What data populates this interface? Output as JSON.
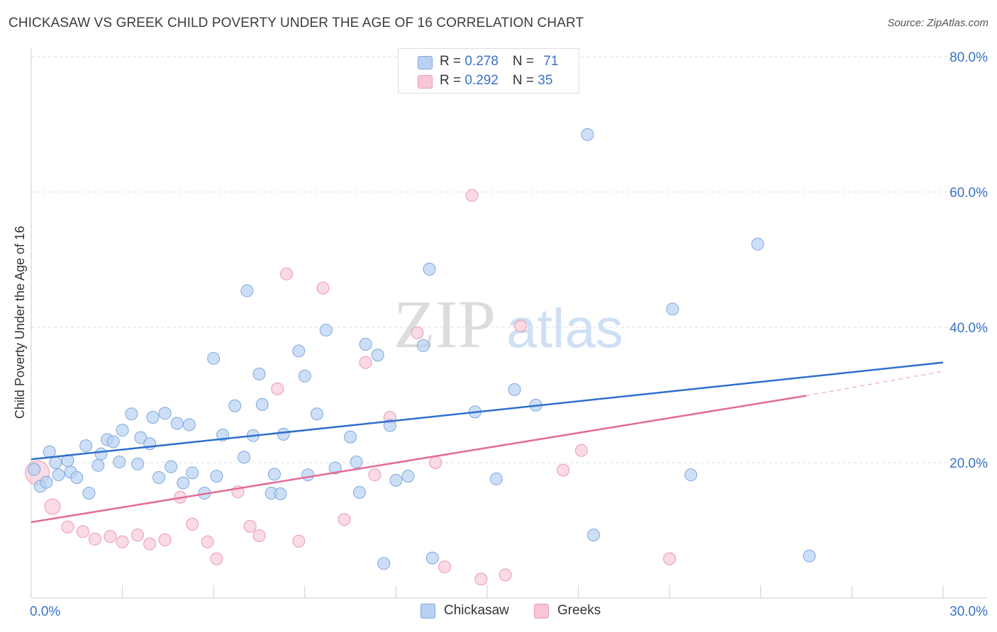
{
  "title": "CHICKASAW VS GREEK CHILD POVERTY UNDER THE AGE OF 16 CORRELATION CHART",
  "source": "Source: ZipAtlas.com",
  "watermark": {
    "zip": "ZIP",
    "atlas": "atlas"
  },
  "colors": {
    "blue_fill": "#b8d1f3",
    "blue_stroke": "#7da8dc",
    "blue_line": "#2e6fcf",
    "pink_fill": "#f8c6d5",
    "pink_stroke": "#e89ab3",
    "pink_line": "#e46b96",
    "grid": "#dcdcdc",
    "tick_label": "#3a72c8"
  },
  "legend": {
    "rows": [
      {
        "r_label": "R = ",
        "r_value": "0.278",
        "n_label": "N = ",
        "n_value": "71"
      },
      {
        "r_label": "R = ",
        "r_value": "0.292",
        "n_label": "N = ",
        "n_value": "35"
      }
    ]
  },
  "bottom_legend": {
    "chickasaw": "Chickasaw",
    "greeks": "Greeks"
  },
  "chart_data": {
    "type": "scatter",
    "title": "CHICKASAW VS GREEK CHILD POVERTY UNDER THE AGE OF 16 CORRELATION CHART",
    "xlabel": "",
    "ylabel": "Child Poverty Under the Age of 16",
    "xlim": [
      0,
      30
    ],
    "ylim": [
      0,
      80
    ],
    "x_tick_labels": [
      "0.0%",
      "30.0%"
    ],
    "y_ticks": [
      20,
      40,
      60,
      80
    ],
    "y_tick_labels": [
      "20.0%",
      "40.0%",
      "60.0%",
      "80.0%"
    ],
    "x_minor_ticks": [
      3,
      6,
      9,
      12,
      15,
      18,
      21,
      24,
      27
    ],
    "grid": true,
    "legend_position": "top-center",
    "series": [
      {
        "name": "Chickasaw",
        "color": "#b8d1f3",
        "trend": {
          "x": [
            0,
            30
          ],
          "y": [
            20.5,
            34.8
          ]
        },
        "points": [
          [
            0.1,
            19.0
          ],
          [
            0.3,
            16.5
          ],
          [
            0.5,
            17.1
          ],
          [
            0.6,
            21.6
          ],
          [
            0.8,
            20.0
          ],
          [
            0.9,
            18.2
          ],
          [
            1.2,
            20.3
          ],
          [
            1.3,
            18.6
          ],
          [
            1.5,
            17.8
          ],
          [
            1.8,
            22.5
          ],
          [
            1.9,
            15.5
          ],
          [
            2.2,
            19.6
          ],
          [
            2.3,
            21.3
          ],
          [
            2.5,
            23.4
          ],
          [
            2.7,
            23.1
          ],
          [
            2.9,
            20.1
          ],
          [
            3.0,
            24.8
          ],
          [
            3.3,
            27.2
          ],
          [
            3.5,
            19.8
          ],
          [
            3.6,
            23.7
          ],
          [
            3.9,
            22.8
          ],
          [
            4.0,
            26.7
          ],
          [
            4.2,
            17.8
          ],
          [
            4.4,
            27.3
          ],
          [
            4.6,
            19.4
          ],
          [
            4.8,
            25.8
          ],
          [
            5.0,
            17.0
          ],
          [
            5.2,
            25.6
          ],
          [
            5.3,
            18.5
          ],
          [
            5.7,
            15.5
          ],
          [
            6.0,
            35.4
          ],
          [
            6.1,
            18.0
          ],
          [
            6.3,
            24.1
          ],
          [
            6.7,
            28.4
          ],
          [
            7.0,
            20.8
          ],
          [
            7.1,
            45.4
          ],
          [
            7.3,
            24.0
          ],
          [
            7.5,
            33.1
          ],
          [
            7.6,
            28.6
          ],
          [
            7.9,
            15.5
          ],
          [
            8.0,
            18.3
          ],
          [
            8.2,
            15.4
          ],
          [
            8.3,
            24.2
          ],
          [
            8.8,
            36.5
          ],
          [
            9.0,
            32.8
          ],
          [
            9.1,
            18.2
          ],
          [
            9.4,
            27.2
          ],
          [
            9.7,
            39.6
          ],
          [
            10.0,
            19.2
          ],
          [
            10.5,
            23.8
          ],
          [
            10.7,
            20.1
          ],
          [
            10.8,
            15.6
          ],
          [
            11.0,
            37.5
          ],
          [
            11.4,
            35.9
          ],
          [
            11.6,
            5.1
          ],
          [
            11.8,
            25.5
          ],
          [
            12.0,
            17.4
          ],
          [
            12.4,
            18.0
          ],
          [
            12.9,
            37.3
          ],
          [
            13.1,
            48.6
          ],
          [
            13.2,
            5.9
          ],
          [
            14.6,
            27.5
          ],
          [
            15.3,
            17.6
          ],
          [
            15.9,
            30.8
          ],
          [
            16.6,
            28.5
          ],
          [
            18.3,
            68.5
          ],
          [
            18.5,
            9.3
          ],
          [
            21.1,
            42.7
          ],
          [
            21.7,
            18.2
          ],
          [
            23.9,
            52.3
          ],
          [
            25.6,
            6.2
          ]
        ]
      },
      {
        "name": "Greeks",
        "color": "#f8c6d5",
        "trend": {
          "x": [
            0,
            25.5
          ],
          "y": [
            11.2,
            29.9
          ]
        },
        "trend_dashed": {
          "x": [
            25.5,
            30
          ],
          "y": [
            29.9,
            33.5
          ]
        },
        "points": [
          [
            0.2,
            18.5
          ],
          [
            0.7,
            13.5
          ],
          [
            1.2,
            10.5
          ],
          [
            1.7,
            9.8
          ],
          [
            2.1,
            8.7
          ],
          [
            2.6,
            9.1
          ],
          [
            3.0,
            8.3
          ],
          [
            3.5,
            9.3
          ],
          [
            3.9,
            8.0
          ],
          [
            4.4,
            8.6
          ],
          [
            4.9,
            14.9
          ],
          [
            5.3,
            10.9
          ],
          [
            5.8,
            8.3
          ],
          [
            6.1,
            5.8
          ],
          [
            6.8,
            15.7
          ],
          [
            7.2,
            10.6
          ],
          [
            7.5,
            9.2
          ],
          [
            8.1,
            30.9
          ],
          [
            8.4,
            47.9
          ],
          [
            8.8,
            8.4
          ],
          [
            9.6,
            45.8
          ],
          [
            10.3,
            11.6
          ],
          [
            11.0,
            34.8
          ],
          [
            11.3,
            18.2
          ],
          [
            11.8,
            26.7
          ],
          [
            12.7,
            39.2
          ],
          [
            13.3,
            20.0
          ],
          [
            13.6,
            4.6
          ],
          [
            14.5,
            59.5
          ],
          [
            14.8,
            2.8
          ],
          [
            15.6,
            3.4
          ],
          [
            16.1,
            40.2
          ],
          [
            17.5,
            18.9
          ],
          [
            18.1,
            21.8
          ],
          [
            21.0,
            5.8
          ]
        ]
      }
    ]
  }
}
